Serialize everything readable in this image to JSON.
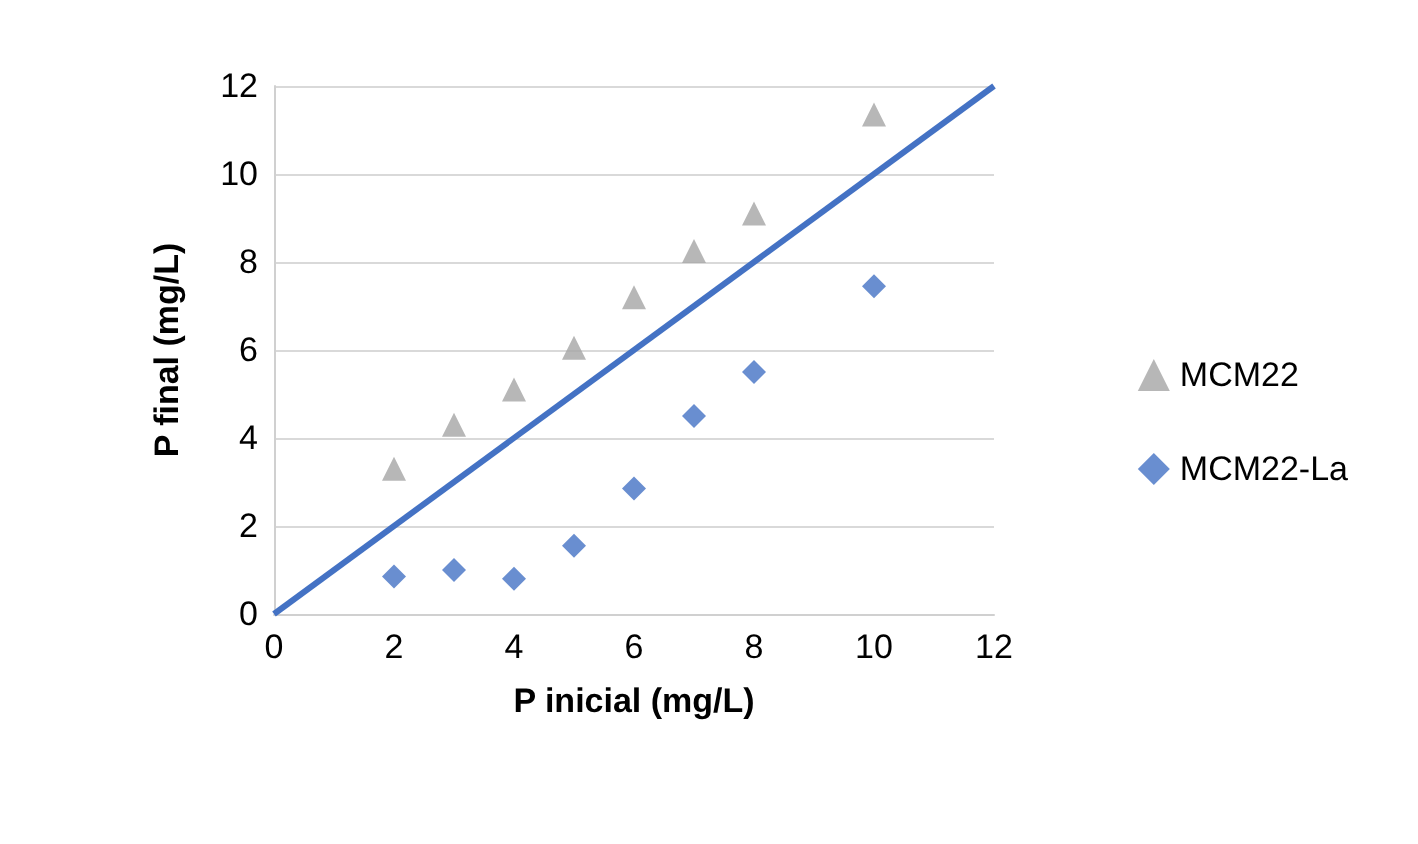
{
  "chart_data": {
    "type": "scatter",
    "xlabel": "P inicial (mg/L)",
    "ylabel": "P final (mg/L)",
    "xlim": [
      0,
      12
    ],
    "xticks": [
      0,
      2,
      4,
      6,
      8,
      10,
      12
    ],
    "ylim": [
      0,
      12
    ],
    "yticks": [
      0,
      2,
      4,
      6,
      8,
      10,
      12
    ],
    "grid": "y",
    "legend": "right",
    "series": [
      {
        "name": "MCM22",
        "color": "#a5a5a5",
        "marker": "triangle",
        "x": [
          2,
          3,
          4,
          5,
          6,
          7,
          8,
          10
        ],
        "values": [
          3.3,
          4.3,
          5.1,
          6.05,
          7.2,
          8.25,
          9.1,
          11.35
        ]
      },
      {
        "name": "MCM22-La",
        "color": "#4472c4",
        "marker": "diamond",
        "x": [
          2,
          3,
          4,
          5,
          6,
          7,
          8,
          10
        ],
        "values": [
          0.85,
          1.0,
          0.8,
          1.55,
          2.85,
          4.5,
          5.5,
          7.45
        ]
      },
      {
        "type": "line",
        "color": "#4472c4",
        "marker": "none",
        "x": [
          0,
          12
        ],
        "values": [
          0,
          12
        ]
      }
    ]
  }
}
